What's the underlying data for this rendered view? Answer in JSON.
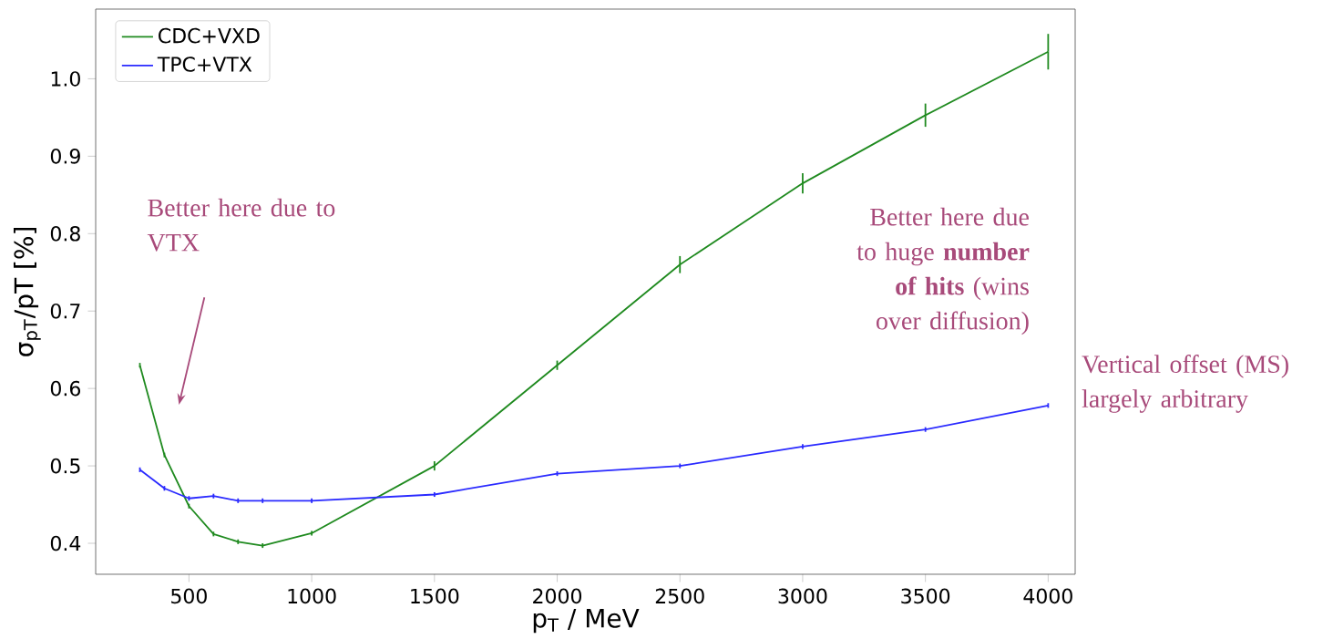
{
  "chart_data": {
    "type": "line",
    "xlabel": "p$_{T}$ / MeV",
    "ylabel": "σ$_{pT}$/pT [%]",
    "xlim": [
      120,
      4110
    ],
    "ylim": [
      0.36,
      1.09
    ],
    "xticks": [
      500,
      1000,
      1500,
      2000,
      2500,
      3000,
      3500,
      4000
    ],
    "yticks": [
      0.4,
      0.5,
      0.6,
      0.7,
      0.8,
      0.9,
      {
        "value": 1.0,
        "label": "1.0"
      }
    ],
    "legend": "top left",
    "x": [
      300,
      400,
      500,
      600,
      700,
      800,
      1000,
      1500,
      2000,
      2500,
      3000,
      3500,
      4000
    ],
    "series": [
      {
        "name": "CDC+VXD",
        "color": "#1f8a1f",
        "values": [
          0.63,
          0.514,
          0.448,
          0.412,
          0.402,
          0.397,
          0.413,
          0.5,
          0.63,
          0.76,
          0.865,
          0.953,
          1.035
        ],
        "errors": [
          0.003,
          0.003,
          0.003,
          0.003,
          0.003,
          0.003,
          0.003,
          0.006,
          0.006,
          0.011,
          0.013,
          0.015,
          0.023
        ]
      },
      {
        "name": "TPC+VTX",
        "color": "#2a2aff",
        "values": [
          0.495,
          0.471,
          0.458,
          0.461,
          0.455,
          0.455,
          0.455,
          0.463,
          0.49,
          0.5,
          0.525,
          0.547,
          0.578
        ],
        "errors": [
          0.003,
          0.003,
          0.003,
          0.003,
          0.003,
          0.003,
          0.003,
          0.003,
          0.003,
          0.003,
          0.003,
          0.003,
          0.003
        ]
      }
    ],
    "annotations": [
      "Better here due to VTX",
      "Better here due to huge **number of hits** (wins over diffusion)",
      "Vertical offset (MS) largely arbitrary"
    ]
  }
}
